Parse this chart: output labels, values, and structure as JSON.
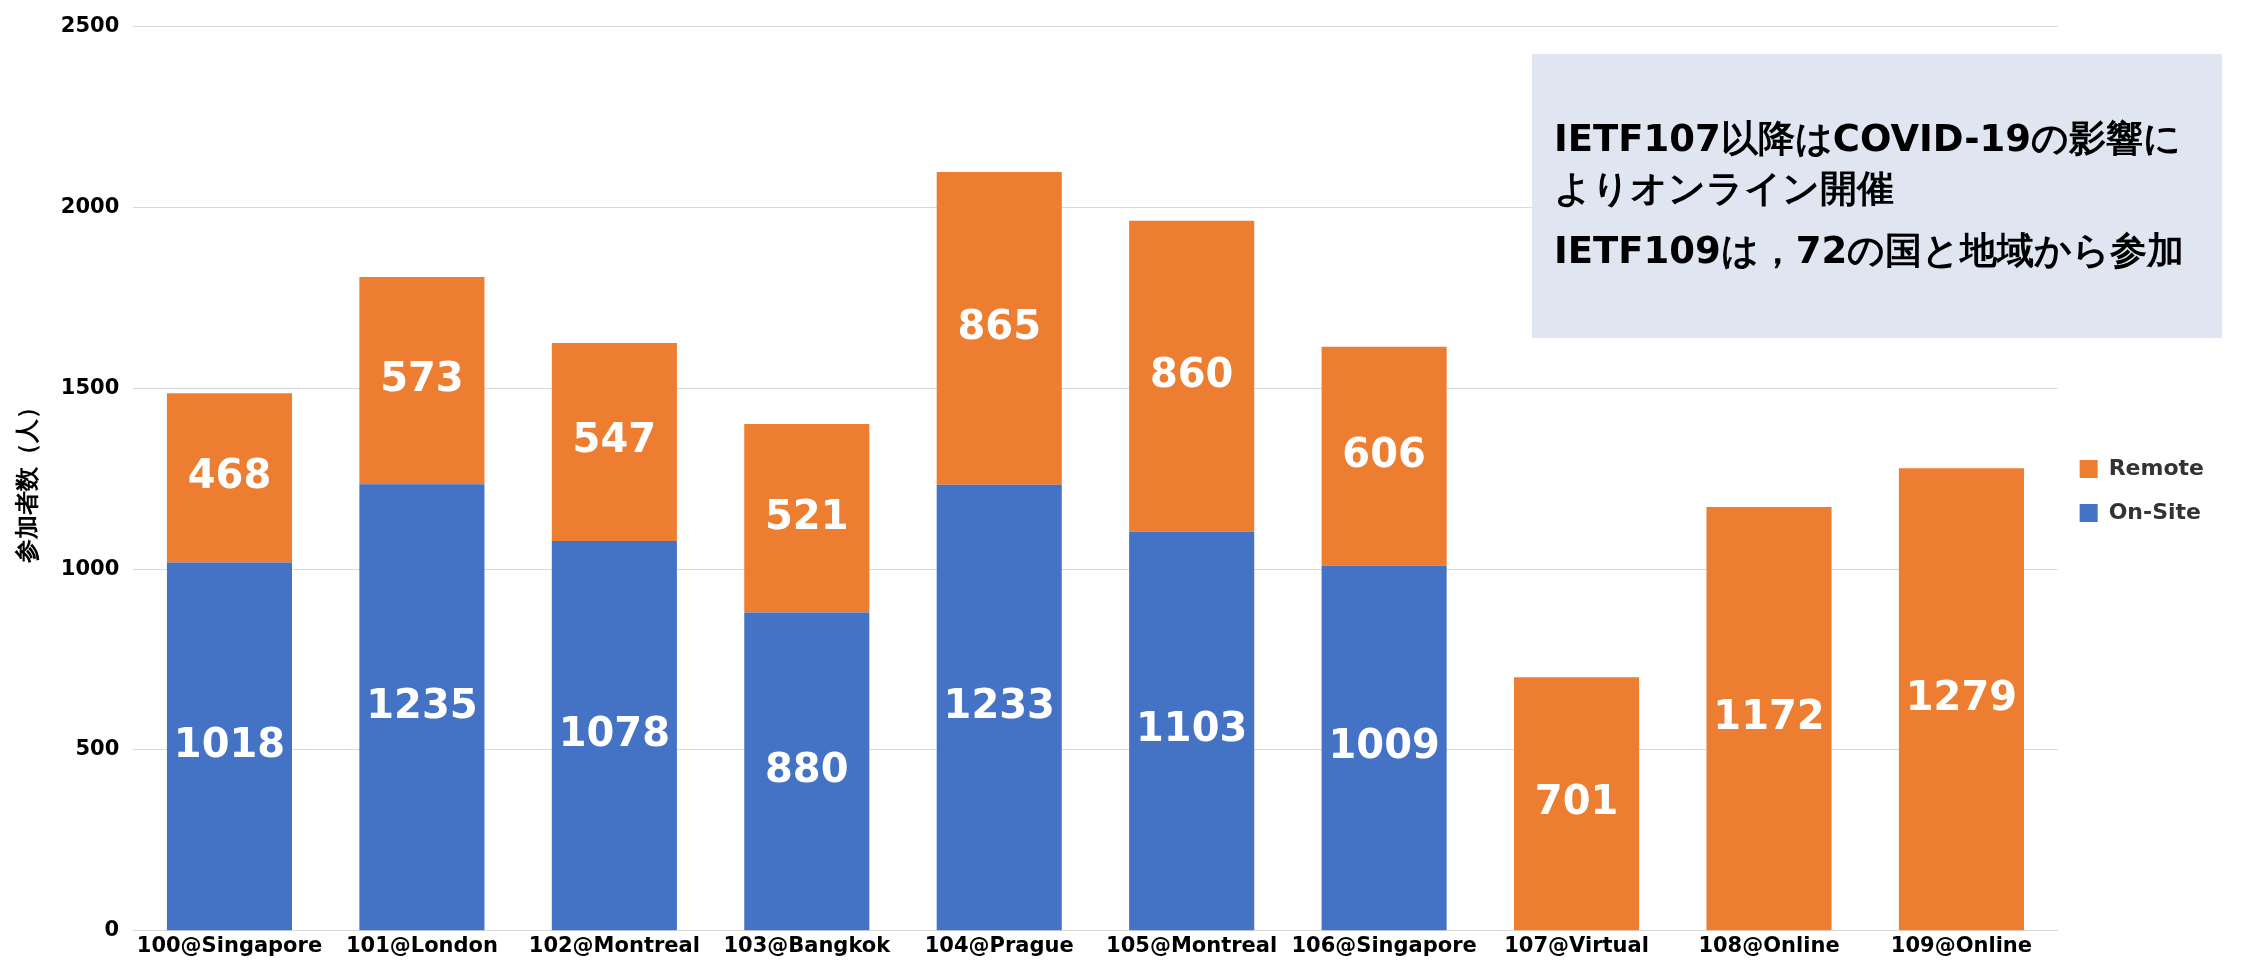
{
  "chart_data": {
    "type": "bar",
    "stacked": true,
    "ylabel": "参加者数（人）",
    "categories": [
      "100@Singapore",
      "101@London",
      "102@Montreal",
      "103@Bangkok",
      "104@Prague",
      "105@Montreal",
      "106@Singapore",
      "107@Virtual",
      "108@Online",
      "109@Online"
    ],
    "series": [
      {
        "name": "On-Site",
        "color": "#4472c4",
        "values": [
          1018,
          1235,
          1078,
          880,
          1233,
          1103,
          1009,
          null,
          null,
          null
        ]
      },
      {
        "name": "Remote",
        "color": "#ed7d31",
        "values": [
          468,
          573,
          547,
          521,
          865,
          860,
          606,
          701,
          1172,
          1279
        ]
      }
    ],
    "ylim": [
      0,
      2500
    ],
    "yticks": [
      0,
      500,
      1000,
      1500,
      2000,
      2500
    ],
    "grid": "y",
    "legend": "right",
    "data_labels": true,
    "annotations": [
      "IETF107以降はCOVID-19の影響によりオンライン開催",
      "IETF109は，72の国と地域から参加"
    ]
  }
}
